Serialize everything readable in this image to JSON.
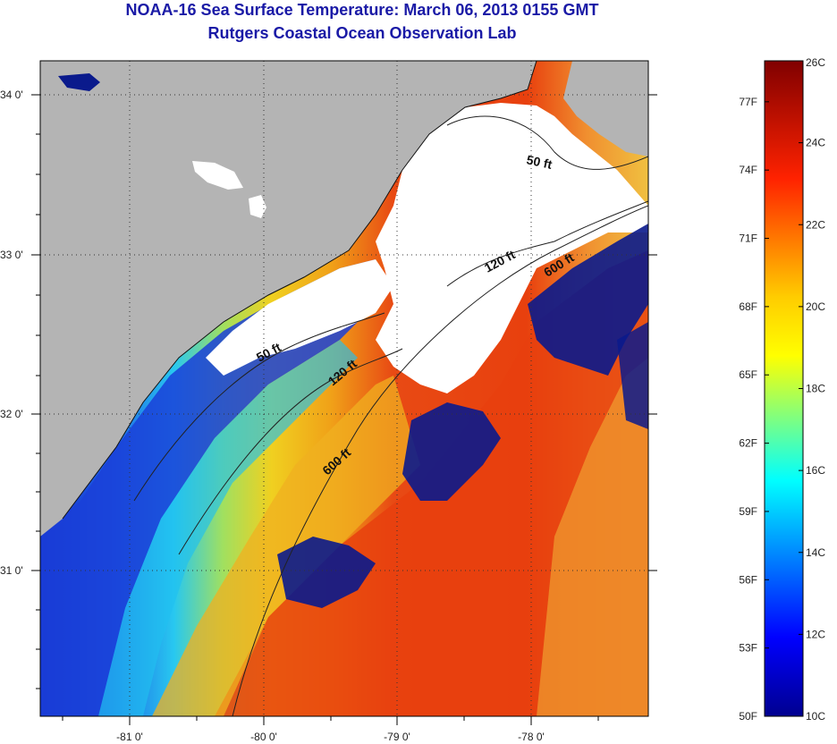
{
  "title": "NOAA-16 Sea Surface Temperature:  March 06, 2013 0155 GMT",
  "subtitle": "Rutgers Coastal Ocean Observation Lab",
  "map": {
    "lat_ticks": [
      "34 0'",
      "33 0'",
      "32 0'",
      "31 0'"
    ],
    "lon_ticks": [
      "-81 0'",
      "-80 0'",
      "-79 0'",
      "-78 0'"
    ],
    "contour_labels": [
      {
        "text": "50 ft"
      },
      {
        "text": "120 ft"
      },
      {
        "text": "600 ft"
      },
      {
        "text": "50 ft"
      },
      {
        "text": "120 ft"
      },
      {
        "text": "600 ft"
      }
    ],
    "colors": {
      "land": "#b4b4b4",
      "cloud": "#ffffff",
      "cold": "#1a2ec8",
      "warm": "#e83a10"
    }
  },
  "colorbar": {
    "fahrenheit_labels": [
      "77F",
      "74F",
      "71F",
      "68F",
      "65F",
      "62F",
      "59F",
      "56F",
      "53F",
      "50F"
    ],
    "celsius_labels": [
      "26C",
      "24C",
      "22C",
      "20C",
      "18C",
      "16C",
      "14C",
      "12C",
      "10C"
    ],
    "range_c": [
      10,
      26
    ],
    "range_f": [
      50,
      78.8
    ]
  }
}
